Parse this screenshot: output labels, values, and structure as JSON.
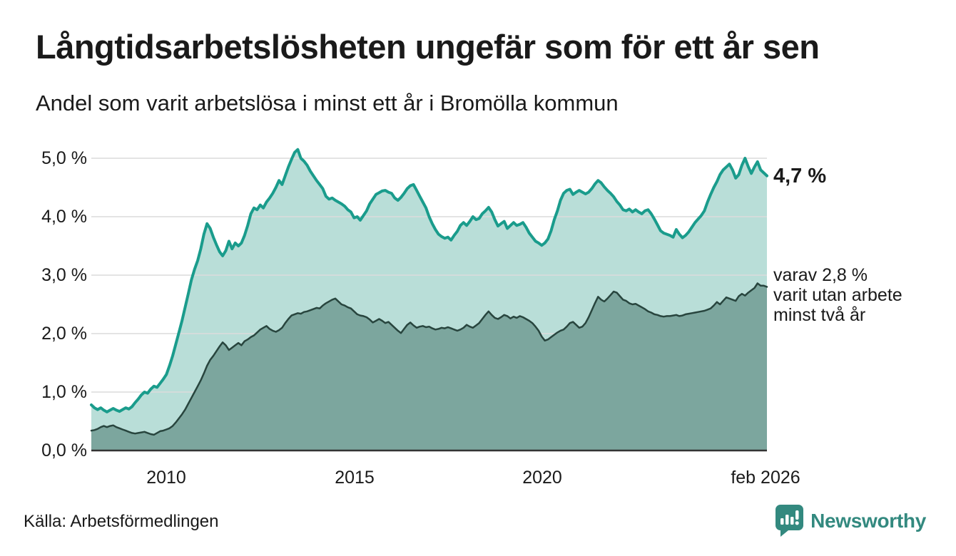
{
  "header": {
    "title": "Långtidsarbetslösheten ungefär som för ett år sen",
    "subtitle": "Andel som varit arbetslösa i minst ett år i Bromölla kommun"
  },
  "annotations": {
    "latest_total": "4,7 %",
    "sub_lines": [
      "varav 2,8 %",
      "varit utan arbete",
      "minst två år"
    ]
  },
  "footer": {
    "source": "Källa: Arbetsförmedlingen",
    "brand": "Newsworthy"
  },
  "colors": {
    "text": "#1a1a1a",
    "grid": "#dcdcdc",
    "baseline": "#333333",
    "brand_teal": "#33897f"
  },
  "chart_data": {
    "type": "area",
    "title": "Långtidsarbetslösheten ungefär som för ett år sen",
    "subtitle": "Andel som varit arbetslösa i minst ett år i Bromölla kommun",
    "unit": "%",
    "frequency": "monthly",
    "x_start": "2008-02",
    "x_end": "2026-02",
    "ylim": [
      0,
      5.3
    ],
    "grid": true,
    "x_tick_labels": [
      "2010",
      "2015",
      "2020",
      "feb 2026"
    ],
    "y_tick_labels": [
      "0,0 %",
      "1,0 %",
      "2,0 %",
      "3,0 %",
      "4,0 %",
      "5,0 %"
    ],
    "series": [
      {
        "name": "Andel arbetslösa minst ett år",
        "latest_label": "4,7 %",
        "latest_value": 4.7,
        "line_color": "#1a9c8c",
        "fill_color": "#b9ded8",
        "line_width": 4,
        "values": [
          0.78,
          0.73,
          0.7,
          0.73,
          0.69,
          0.66,
          0.69,
          0.72,
          0.69,
          0.67,
          0.7,
          0.73,
          0.71,
          0.75,
          0.82,
          0.88,
          0.95,
          1.0,
          0.98,
          1.05,
          1.1,
          1.08,
          1.15,
          1.22,
          1.3,
          1.45,
          1.62,
          1.82,
          2.02,
          2.22,
          2.45,
          2.68,
          2.92,
          3.1,
          3.25,
          3.45,
          3.7,
          3.88,
          3.8,
          3.65,
          3.52,
          3.4,
          3.33,
          3.42,
          3.58,
          3.45,
          3.55,
          3.5,
          3.55,
          3.68,
          3.85,
          4.05,
          4.15,
          4.12,
          4.2,
          4.15,
          4.25,
          4.32,
          4.4,
          4.5,
          4.62,
          4.55,
          4.7,
          4.85,
          4.98,
          5.1,
          5.15,
          5.0,
          4.95,
          4.88,
          4.78,
          4.7,
          4.62,
          4.55,
          4.48,
          4.35,
          4.3,
          4.32,
          4.28,
          4.25,
          4.22,
          4.18,
          4.12,
          4.08,
          3.98,
          4.0,
          3.94,
          4.02,
          4.1,
          4.22,
          4.3,
          4.38,
          4.41,
          4.44,
          4.45,
          4.42,
          4.4,
          4.32,
          4.28,
          4.33,
          4.4,
          4.48,
          4.53,
          4.55,
          4.45,
          4.35,
          4.25,
          4.15,
          4.0,
          3.88,
          3.78,
          3.7,
          3.66,
          3.63,
          3.65,
          3.6,
          3.68,
          3.75,
          3.85,
          3.9,
          3.85,
          3.92,
          4.0,
          3.95,
          3.97,
          4.05,
          4.1,
          4.16,
          4.08,
          3.95,
          3.84,
          3.88,
          3.92,
          3.8,
          3.85,
          3.9,
          3.85,
          3.87,
          3.9,
          3.82,
          3.72,
          3.65,
          3.58,
          3.55,
          3.51,
          3.55,
          3.62,
          3.76,
          3.95,
          4.1,
          4.28,
          4.4,
          4.45,
          4.47,
          4.38,
          4.42,
          4.45,
          4.42,
          4.39,
          4.42,
          4.48,
          4.56,
          4.62,
          4.58,
          4.51,
          4.45,
          4.4,
          4.34,
          4.26,
          4.2,
          4.12,
          4.1,
          4.13,
          4.08,
          4.12,
          4.08,
          4.05,
          4.1,
          4.12,
          4.05,
          3.96,
          3.86,
          3.76,
          3.72,
          3.7,
          3.68,
          3.65,
          3.78,
          3.7,
          3.64,
          3.68,
          3.74,
          3.82,
          3.9,
          3.96,
          4.02,
          4.1,
          4.25,
          4.38,
          4.5,
          4.6,
          4.72,
          4.8,
          4.85,
          4.9,
          4.8,
          4.66,
          4.72,
          4.88,
          5.0,
          4.86,
          4.74,
          4.85,
          4.94,
          4.8,
          4.75,
          4.7
        ]
      },
      {
        "name": "varav utan arbete minst två år",
        "latest_label": "varav 2,8 % varit utan arbete minst två år",
        "latest_value": 2.8,
        "line_color": "#28453e",
        "fill_color": "#7ca69e",
        "line_width": 2.5,
        "values": [
          0.34,
          0.35,
          0.37,
          0.4,
          0.42,
          0.4,
          0.42,
          0.43,
          0.4,
          0.38,
          0.36,
          0.34,
          0.32,
          0.3,
          0.29,
          0.3,
          0.31,
          0.32,
          0.3,
          0.28,
          0.27,
          0.3,
          0.33,
          0.34,
          0.36,
          0.38,
          0.42,
          0.48,
          0.55,
          0.62,
          0.7,
          0.8,
          0.9,
          1.0,
          1.1,
          1.2,
          1.32,
          1.45,
          1.55,
          1.62,
          1.7,
          1.78,
          1.85,
          1.8,
          1.72,
          1.76,
          1.8,
          1.84,
          1.8,
          1.87,
          1.9,
          1.94,
          1.97,
          2.02,
          2.07,
          2.1,
          2.13,
          2.08,
          2.05,
          2.03,
          2.06,
          2.1,
          2.18,
          2.25,
          2.31,
          2.33,
          2.35,
          2.34,
          2.37,
          2.38,
          2.4,
          2.42,
          2.44,
          2.43,
          2.48,
          2.52,
          2.55,
          2.58,
          2.6,
          2.55,
          2.5,
          2.48,
          2.45,
          2.43,
          2.38,
          2.33,
          2.31,
          2.3,
          2.28,
          2.24,
          2.19,
          2.22,
          2.25,
          2.22,
          2.18,
          2.2,
          2.15,
          2.1,
          2.05,
          2.01,
          2.08,
          2.15,
          2.19,
          2.14,
          2.1,
          2.12,
          2.13,
          2.11,
          2.12,
          2.09,
          2.07,
          2.08,
          2.1,
          2.09,
          2.11,
          2.09,
          2.07,
          2.05,
          2.07,
          2.1,
          2.15,
          2.12,
          2.1,
          2.14,
          2.18,
          2.25,
          2.32,
          2.38,
          2.32,
          2.27,
          2.25,
          2.28,
          2.32,
          2.3,
          2.26,
          2.29,
          2.27,
          2.3,
          2.28,
          2.25,
          2.22,
          2.18,
          2.12,
          2.05,
          1.95,
          1.88,
          1.9,
          1.94,
          1.98,
          2.02,
          2.05,
          2.07,
          2.12,
          2.18,
          2.2,
          2.15,
          2.1,
          2.12,
          2.18,
          2.28,
          2.4,
          2.52,
          2.63,
          2.58,
          2.55,
          2.6,
          2.66,
          2.72,
          2.7,
          2.64,
          2.58,
          2.56,
          2.52,
          2.5,
          2.51,
          2.48,
          2.45,
          2.42,
          2.38,
          2.36,
          2.33,
          2.32,
          2.3,
          2.29,
          2.3,
          2.3,
          2.31,
          2.32,
          2.3,
          2.31,
          2.33,
          2.34,
          2.35,
          2.36,
          2.37,
          2.38,
          2.39,
          2.41,
          2.43,
          2.48,
          2.54,
          2.5,
          2.56,
          2.62,
          2.6,
          2.58,
          2.56,
          2.64,
          2.68,
          2.65,
          2.7,
          2.74,
          2.78,
          2.86,
          2.82,
          2.82,
          2.8
        ]
      }
    ]
  }
}
